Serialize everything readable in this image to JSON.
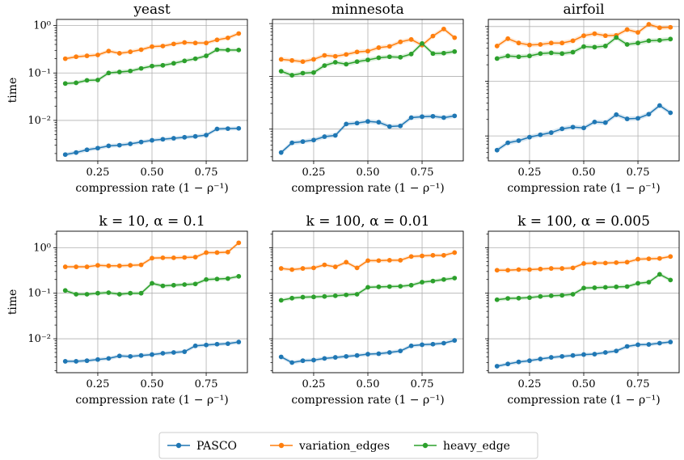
{
  "chart_data": [
    {
      "type": "line",
      "title": "yeast",
      "xlabel": "compression rate (1 − ρ⁻¹)",
      "ylabel": "time",
      "y_scale": "log",
      "xlim": [
        0.06,
        0.94
      ],
      "ylim": [
        0.0014,
        1.35
      ],
      "x_ticks": [
        0.25,
        0.5,
        0.75
      ],
      "x_tick_labels": [
        "0.25",
        "0.50",
        "0.75"
      ],
      "y_ticks": [
        0.01,
        0.1,
        1
      ],
      "y_tick_labels": [
        "10⁻²",
        "10⁻¹",
        "10⁰"
      ],
      "grid": true,
      "x": [
        0.1,
        0.15,
        0.2,
        0.25,
        0.3,
        0.35,
        0.4,
        0.45,
        0.5,
        0.55,
        0.6,
        0.65,
        0.7,
        0.75,
        0.8,
        0.85,
        0.9
      ],
      "series": [
        {
          "name": "PASCO",
          "color": "#1f77b4",
          "values": [
            0.0019,
            0.0021,
            0.0024,
            0.0026,
            0.0029,
            0.003,
            0.0032,
            0.0035,
            0.0038,
            0.004,
            0.0042,
            0.0044,
            0.0046,
            0.0049,
            0.0066,
            0.0067,
            0.0068
          ]
        },
        {
          "name": "variation_edges",
          "color": "#ff7f0e",
          "values": [
            0.2,
            0.22,
            0.23,
            0.24,
            0.29,
            0.26,
            0.28,
            0.31,
            0.36,
            0.37,
            0.41,
            0.44,
            0.43,
            0.43,
            0.5,
            0.55,
            0.68
          ]
        },
        {
          "name": "heavy_edge",
          "color": "#2ca02c",
          "values": [
            0.06,
            0.062,
            0.07,
            0.071,
            0.1,
            0.105,
            0.11,
            0.125,
            0.14,
            0.145,
            0.16,
            0.18,
            0.2,
            0.23,
            0.31,
            0.305,
            0.305
          ]
        }
      ]
    },
    {
      "type": "line",
      "title": "minnesota",
      "xlabel": "compression rate (1 − ρ⁻¹)",
      "ylabel": "",
      "y_scale": "log",
      "xlim": [
        0.06,
        0.94
      ],
      "ylim": [
        0.0025,
        1.2
      ],
      "x_ticks": [
        0.25,
        0.5,
        0.75
      ],
      "x_tick_labels": [
        "0.25",
        "0.50",
        "0.75"
      ],
      "y_ticks": [
        0.01,
        0.1,
        1
      ],
      "y_tick_labels": [
        "",
        "",
        ""
      ],
      "grid": true,
      "x": [
        0.1,
        0.15,
        0.2,
        0.25,
        0.3,
        0.35,
        0.4,
        0.45,
        0.5,
        0.55,
        0.6,
        0.65,
        0.7,
        0.75,
        0.8,
        0.85,
        0.9
      ],
      "series": [
        {
          "name": "PASCO",
          "color": "#1f77b4",
          "values": [
            0.0036,
            0.0055,
            0.0058,
            0.0062,
            0.0072,
            0.0076,
            0.0125,
            0.013,
            0.014,
            0.0135,
            0.0112,
            0.0115,
            0.0165,
            0.0172,
            0.0175,
            0.0165,
            0.0178
          ]
        },
        {
          "name": "variation_edges",
          "color": "#ff7f0e",
          "values": [
            0.21,
            0.2,
            0.19,
            0.21,
            0.25,
            0.24,
            0.26,
            0.29,
            0.3,
            0.35,
            0.37,
            0.45,
            0.5,
            0.39,
            0.58,
            0.79,
            0.54
          ]
        },
        {
          "name": "heavy_edge",
          "color": "#2ca02c",
          "values": [
            0.125,
            0.105,
            0.115,
            0.118,
            0.16,
            0.185,
            0.17,
            0.19,
            0.205,
            0.225,
            0.235,
            0.23,
            0.265,
            0.42,
            0.27,
            0.275,
            0.295
          ]
        }
      ]
    },
    {
      "type": "line",
      "title": "airfoil",
      "xlabel": "compression rate (1 − ρ⁻¹)",
      "ylabel": "",
      "y_scale": "log",
      "xlim": [
        0.06,
        0.94
      ],
      "ylim": [
        0.0035,
        1.35
      ],
      "x_ticks": [
        0.25,
        0.5,
        0.75
      ],
      "x_tick_labels": [
        "0.25",
        "0.50",
        "0.75"
      ],
      "y_ticks": [
        0.01,
        0.1,
        1
      ],
      "y_tick_labels": [
        "",
        "",
        ""
      ],
      "grid": true,
      "x": [
        0.1,
        0.15,
        0.2,
        0.25,
        0.3,
        0.35,
        0.4,
        0.45,
        0.5,
        0.55,
        0.6,
        0.65,
        0.7,
        0.75,
        0.8,
        0.85,
        0.9
      ],
      "series": [
        {
          "name": "PASCO",
          "color": "#1f77b4",
          "values": [
            0.0055,
            0.0075,
            0.0082,
            0.0095,
            0.0105,
            0.0115,
            0.0135,
            0.0145,
            0.014,
            0.018,
            0.0175,
            0.0245,
            0.0205,
            0.021,
            0.025,
            0.036,
            0.0265
          ]
        },
        {
          "name": "variation_edges",
          "color": "#ff7f0e",
          "values": [
            0.44,
            0.6,
            0.5,
            0.46,
            0.47,
            0.5,
            0.5,
            0.55,
            0.68,
            0.74,
            0.68,
            0.69,
            0.88,
            0.78,
            1.1,
            0.95,
            0.97
          ]
        },
        {
          "name": "heavy_edge",
          "color": "#2ca02c",
          "values": [
            0.26,
            0.29,
            0.28,
            0.29,
            0.32,
            0.33,
            0.32,
            0.34,
            0.43,
            0.42,
            0.44,
            0.63,
            0.47,
            0.5,
            0.55,
            0.56,
            0.59
          ]
        }
      ]
    },
    {
      "type": "line",
      "title": "k = 10, α = 0.1",
      "xlabel": "compression rate (1 − ρ⁻¹)",
      "ylabel": "time",
      "y_scale": "log",
      "xlim": [
        0.06,
        0.94
      ],
      "ylim": [
        0.0018,
        2.3
      ],
      "x_ticks": [
        0.25,
        0.5,
        0.75
      ],
      "x_tick_labels": [
        "0.25",
        "0.50",
        "0.75"
      ],
      "y_ticks": [
        0.01,
        0.1,
        1
      ],
      "y_tick_labels": [
        "10⁻²",
        "10⁻¹",
        "10⁰"
      ],
      "grid": true,
      "x": [
        0.1,
        0.15,
        0.2,
        0.25,
        0.3,
        0.35,
        0.4,
        0.45,
        0.5,
        0.55,
        0.6,
        0.65,
        0.7,
        0.75,
        0.8,
        0.85,
        0.9
      ],
      "series": [
        {
          "name": "PASCO",
          "color": "#1f77b4",
          "values": [
            0.0032,
            0.0032,
            0.0033,
            0.0035,
            0.0037,
            0.0042,
            0.0041,
            0.0043,
            0.0045,
            0.0048,
            0.005,
            0.0052,
            0.007,
            0.0073,
            0.0076,
            0.0078,
            0.0085
          ]
        },
        {
          "name": "variation_edges",
          "color": "#ff7f0e",
          "values": [
            0.38,
            0.38,
            0.38,
            0.41,
            0.4,
            0.4,
            0.41,
            0.42,
            0.59,
            0.6,
            0.6,
            0.61,
            0.62,
            0.78,
            0.78,
            0.8,
            1.28
          ]
        },
        {
          "name": "heavy_edge",
          "color": "#2ca02c",
          "values": [
            0.115,
            0.095,
            0.095,
            0.1,
            0.103,
            0.095,
            0.1,
            0.1,
            0.165,
            0.145,
            0.15,
            0.155,
            0.16,
            0.2,
            0.205,
            0.21,
            0.235
          ]
        }
      ]
    },
    {
      "type": "line",
      "title": "k = 100, α = 0.01",
      "xlabel": "compression rate (1 − ρ⁻¹)",
      "ylabel": "",
      "y_scale": "log",
      "xlim": [
        0.06,
        0.94
      ],
      "ylim": [
        0.0018,
        2.3
      ],
      "x_ticks": [
        0.25,
        0.5,
        0.75
      ],
      "x_tick_labels": [
        "0.25",
        "0.50",
        "0.75"
      ],
      "y_ticks": [
        0.01,
        0.1,
        1
      ],
      "y_tick_labels": [
        "",
        "",
        ""
      ],
      "grid": true,
      "x": [
        0.1,
        0.15,
        0.2,
        0.25,
        0.3,
        0.35,
        0.4,
        0.45,
        0.5,
        0.55,
        0.6,
        0.65,
        0.7,
        0.75,
        0.8,
        0.85,
        0.9
      ],
      "series": [
        {
          "name": "PASCO",
          "color": "#1f77b4",
          "values": [
            0.004,
            0.003,
            0.0033,
            0.0034,
            0.0037,
            0.0039,
            0.0041,
            0.0043,
            0.0046,
            0.0047,
            0.005,
            0.0054,
            0.007,
            0.0074,
            0.0076,
            0.008,
            0.0092
          ]
        },
        {
          "name": "variation_edges",
          "color": "#ff7f0e",
          "values": [
            0.35,
            0.33,
            0.35,
            0.36,
            0.42,
            0.38,
            0.48,
            0.36,
            0.52,
            0.52,
            0.53,
            0.53,
            0.64,
            0.66,
            0.68,
            0.68,
            0.78
          ]
        },
        {
          "name": "heavy_edge",
          "color": "#2ca02c",
          "values": [
            0.07,
            0.078,
            0.082,
            0.083,
            0.085,
            0.088,
            0.092,
            0.095,
            0.135,
            0.138,
            0.14,
            0.142,
            0.15,
            0.175,
            0.185,
            0.2,
            0.215
          ]
        }
      ]
    },
    {
      "type": "line",
      "title": "k = 100, α = 0.005",
      "xlabel": "compression rate (1 − ρ⁻¹)",
      "ylabel": "",
      "y_scale": "log",
      "xlim": [
        0.06,
        0.94
      ],
      "ylim": [
        0.0018,
        2.3
      ],
      "x_ticks": [
        0.25,
        0.5,
        0.75
      ],
      "x_tick_labels": [
        "0.25",
        "0.50",
        "0.75"
      ],
      "y_ticks": [
        0.01,
        0.1,
        1
      ],
      "y_tick_labels": [
        "",
        "",
        ""
      ],
      "grid": true,
      "x": [
        0.1,
        0.15,
        0.2,
        0.25,
        0.3,
        0.35,
        0.4,
        0.45,
        0.5,
        0.55,
        0.6,
        0.65,
        0.7,
        0.75,
        0.8,
        0.85,
        0.9
      ],
      "series": [
        {
          "name": "PASCO",
          "color": "#1f77b4",
          "values": [
            0.0025,
            0.0028,
            0.0031,
            0.0033,
            0.0036,
            0.0039,
            0.0041,
            0.0043,
            0.0045,
            0.0046,
            0.005,
            0.0054,
            0.0068,
            0.0074,
            0.0075,
            0.008,
            0.0085
          ]
        },
        {
          "name": "variation_edges",
          "color": "#ff7f0e",
          "values": [
            0.32,
            0.32,
            0.33,
            0.33,
            0.34,
            0.35,
            0.35,
            0.36,
            0.45,
            0.46,
            0.46,
            0.47,
            0.48,
            0.56,
            0.57,
            0.58,
            0.64
          ]
        },
        {
          "name": "heavy_edge",
          "color": "#2ca02c",
          "values": [
            0.072,
            0.077,
            0.078,
            0.08,
            0.085,
            0.088,
            0.09,
            0.095,
            0.13,
            0.132,
            0.135,
            0.138,
            0.14,
            0.165,
            0.175,
            0.26,
            0.195
          ]
        }
      ]
    }
  ],
  "legend": {
    "placement": "bottom-center",
    "entries": [
      {
        "label": "PASCO",
        "color": "#1f77b4"
      },
      {
        "label": "variation_edges",
        "color": "#ff7f0e"
      },
      {
        "label": "heavy_edge",
        "color": "#2ca02c"
      }
    ]
  }
}
